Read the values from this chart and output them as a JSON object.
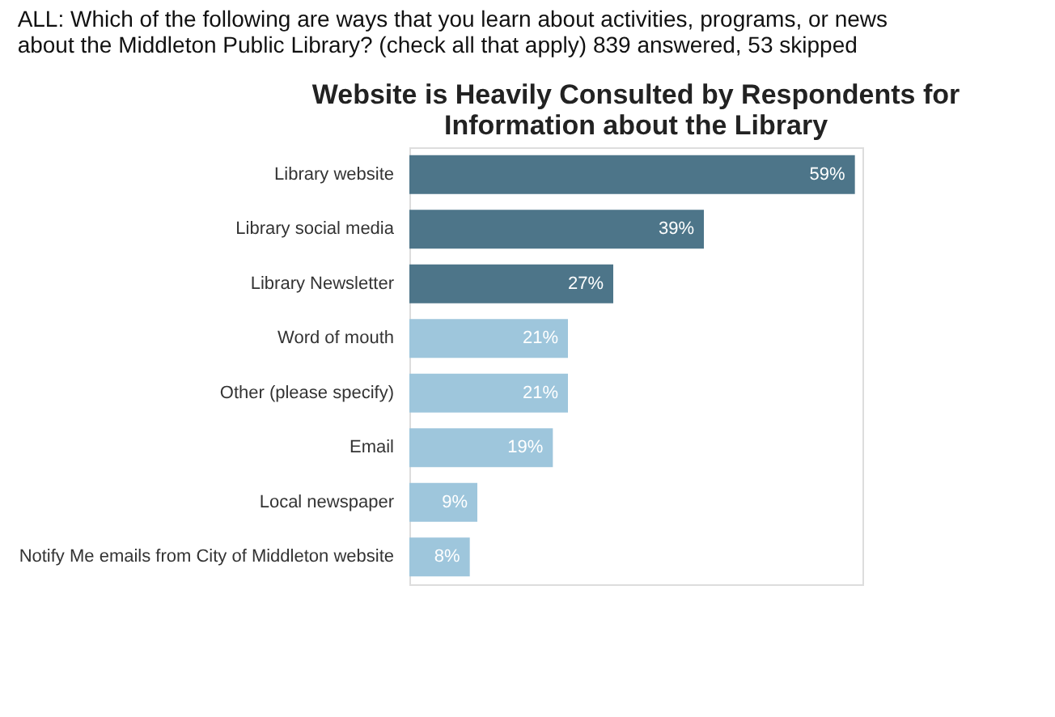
{
  "chart_data": {
    "type": "bar",
    "orientation": "horizontal",
    "subtitle": "ALL: Which of the following are ways that you learn about activities, programs, or news about the Middleton Public Library? (check all that apply) 839 answered, 53 skipped",
    "title": "Website is Heavily Consulted by Respondents for Information about the Library",
    "categories": [
      "Library website",
      "Library social media",
      "Library Newsletter",
      "Word of mouth",
      "Other (please specify)",
      "Email",
      "Local newspaper",
      "Notify Me emails from City of Middleton website"
    ],
    "values": [
      59,
      39,
      27,
      21,
      21,
      19,
      9,
      8
    ],
    "value_labels": [
      "59%",
      "39%",
      "27%",
      "21%",
      "21%",
      "19%",
      "9%",
      "8%"
    ],
    "colors": [
      "#4d7589",
      "#4d7589",
      "#4d7589",
      "#9ec6dc",
      "#9ec6dc",
      "#9ec6dc",
      "#9ec6dc",
      "#9ec6dc"
    ]
  }
}
